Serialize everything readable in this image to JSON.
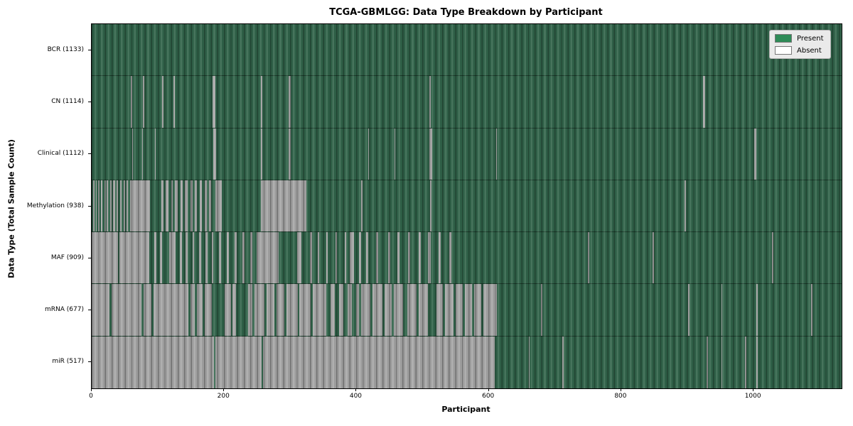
{
  "title": "TCGA-GBMLGG: Data Type Breakdown by Participant",
  "legend": {
    "items": [
      {
        "label": "Present",
        "color": "#2e8b57"
      },
      {
        "label": "Absent",
        "color": "#ffffff"
      }
    ]
  },
  "chart_data": {
    "type": "heatmap",
    "title": "TCGA-GBMLGG: Data Type Breakdown by Participant",
    "xlabel": "Participant",
    "ylabel": "Data Type (Total Sample Count)",
    "x_ticks": [
      0,
      200,
      400,
      600,
      800,
      1000
    ],
    "x_range": [
      0,
      1133
    ],
    "grid": false,
    "legend_position": "upper right",
    "legend_entries": [
      "Present",
      "Absent"
    ],
    "colors": {
      "present_legend": "#2e8b57",
      "absent_legend": "#ffffff",
      "present_render": "#31644a",
      "absent_render": "#a6a6a6"
    },
    "rows": [
      {
        "label": "BCR (1133)",
        "name": "BCR",
        "present_count": 1133,
        "absent_ranges": []
      },
      {
        "label": "CN (1114)",
        "name": "CN",
        "present_count": 1114,
        "absent_ranges": [
          [
            59,
            61
          ],
          [
            77,
            79
          ],
          [
            106,
            108
          ],
          [
            124,
            126
          ],
          [
            183,
            187
          ],
          [
            256,
            258
          ],
          [
            297,
            301
          ],
          [
            510,
            512
          ],
          [
            924,
            927
          ]
        ]
      },
      {
        "label": "Clinical (1112)",
        "name": "Clinical",
        "present_count": 1112,
        "absent_ranges": [
          [
            61,
            62
          ],
          [
            76,
            77
          ],
          [
            96,
            97
          ],
          [
            184,
            188
          ],
          [
            256,
            258
          ],
          [
            297,
            301
          ],
          [
            418,
            419
          ],
          [
            458,
            459
          ],
          [
            510,
            514
          ],
          [
            611,
            612
          ],
          [
            1001,
            1004
          ]
        ]
      },
      {
        "label": "Methylation (938)",
        "name": "Methylation",
        "present_count": 938,
        "absent_ranges": [
          [
            2,
            4
          ],
          [
            6,
            8
          ],
          [
            10,
            12
          ],
          [
            14,
            16
          ],
          [
            19,
            21
          ],
          [
            23,
            25
          ],
          [
            28,
            30
          ],
          [
            32,
            35
          ],
          [
            38,
            40
          ],
          [
            43,
            45
          ],
          [
            48,
            51
          ],
          [
            53,
            55
          ],
          [
            58,
            88
          ],
          [
            105,
            109
          ],
          [
            112,
            116
          ],
          [
            120,
            122
          ],
          [
            126,
            130
          ],
          [
            134,
            137
          ],
          [
            141,
            145
          ],
          [
            149,
            152
          ],
          [
            156,
            159
          ],
          [
            163,
            167
          ],
          [
            171,
            174
          ],
          [
            177,
            180
          ],
          [
            187,
            197
          ],
          [
            256,
            324
          ],
          [
            407,
            409
          ],
          [
            511,
            513
          ],
          [
            896,
            898
          ]
        ]
      },
      {
        "label": "MAF (909)",
        "name": "MAF",
        "present_count": 909,
        "absent_ranges": [
          [
            0,
            40
          ],
          [
            42,
            87
          ],
          [
            95,
            98
          ],
          [
            103,
            106
          ],
          [
            117,
            127
          ],
          [
            133,
            136
          ],
          [
            142,
            145
          ],
          [
            152,
            155
          ],
          [
            162,
            165
          ],
          [
            172,
            175
          ],
          [
            182,
            184
          ],
          [
            192,
            195
          ],
          [
            204,
            207
          ],
          [
            216,
            219
          ],
          [
            228,
            231
          ],
          [
            240,
            243
          ],
          [
            249,
            282
          ],
          [
            310,
            317
          ],
          [
            330,
            333
          ],
          [
            341,
            344
          ],
          [
            354,
            357
          ],
          [
            368,
            371
          ],
          [
            382,
            385
          ],
          [
            390,
            396
          ],
          [
            404,
            407
          ],
          [
            415,
            418
          ],
          [
            430,
            433
          ],
          [
            448,
            451
          ],
          [
            462,
            465
          ],
          [
            478,
            481
          ],
          [
            494,
            497
          ],
          [
            508,
            512
          ],
          [
            524,
            527
          ],
          [
            540,
            543
          ],
          [
            750,
            752
          ],
          [
            847,
            849
          ],
          [
            1028,
            1030
          ]
        ]
      },
      {
        "label": "mRNA (677)",
        "name": "mRNA",
        "present_count": 677,
        "absent_ranges": [
          [
            0,
            27
          ],
          [
            30,
            75
          ],
          [
            78,
            90
          ],
          [
            93,
            146
          ],
          [
            149,
            156
          ],
          [
            159,
            168
          ],
          [
            171,
            181
          ],
          [
            201,
            210
          ],
          [
            213,
            218
          ],
          [
            236,
            243
          ],
          [
            246,
            261
          ],
          [
            264,
            276
          ],
          [
            279,
            291
          ],
          [
            294,
            311
          ],
          [
            314,
            331
          ],
          [
            334,
            354
          ],
          [
            361,
            367
          ],
          [
            374,
            380
          ],
          [
            387,
            393
          ],
          [
            400,
            404
          ],
          [
            407,
            421
          ],
          [
            424,
            439
          ],
          [
            442,
            453
          ],
          [
            456,
            470
          ],
          [
            477,
            491
          ],
          [
            494,
            508
          ],
          [
            521,
            531
          ],
          [
            534,
            547
          ],
          [
            550,
            561
          ],
          [
            564,
            575
          ],
          [
            578,
            589
          ],
          [
            592,
            612
          ],
          [
            679,
            681
          ],
          [
            901,
            903
          ],
          [
            951,
            953
          ],
          [
            1004,
            1006
          ],
          [
            1087,
            1089
          ]
        ]
      },
      {
        "label": "miR (517)",
        "name": "miR",
        "present_count": 517,
        "absent_ranges": [
          [
            0,
            185
          ],
          [
            187,
            257
          ],
          [
            259,
            609
          ],
          [
            660,
            662
          ],
          [
            711,
            713
          ],
          [
            929,
            931
          ],
          [
            951,
            953
          ],
          [
            987,
            989
          ],
          [
            1004,
            1006
          ]
        ]
      }
    ]
  }
}
